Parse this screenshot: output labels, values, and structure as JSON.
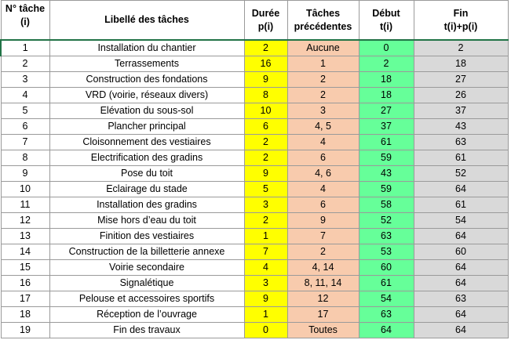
{
  "header": {
    "num_line1": "N° tâche",
    "num_line2": "(i)",
    "label": "Libellé des tâches",
    "duree_line1": "Durée",
    "duree_line2": "p(i)",
    "prec_line1": "Tâches",
    "prec_line2": "précédentes",
    "debut_line1": "Début",
    "debut_line2": "t(i)",
    "fin_line1": "Fin",
    "fin_line2": "t(i)+p(i)"
  },
  "rows": [
    {
      "num": "1",
      "label": "Installation du chantier",
      "duree": "2",
      "prec": "Aucune",
      "debut": "0",
      "fin": "2"
    },
    {
      "num": "2",
      "label": "Terrassements",
      "duree": "16",
      "prec": "1",
      "debut": "2",
      "fin": "18"
    },
    {
      "num": "3",
      "label": "Construction des fondations",
      "duree": "9",
      "prec": "2",
      "debut": "18",
      "fin": "27"
    },
    {
      "num": "4",
      "label": "VRD (voirie, réseaux divers)",
      "duree": "8",
      "prec": "2",
      "debut": "18",
      "fin": "26"
    },
    {
      "num": "5",
      "label": "Elévation du sous-sol",
      "duree": "10",
      "prec": "3",
      "debut": "27",
      "fin": "37"
    },
    {
      "num": "6",
      "label": "Plancher principal",
      "duree": "6",
      "prec": "4, 5",
      "debut": "37",
      "fin": "43"
    },
    {
      "num": "7",
      "label": "Cloisonnement des vestiaires",
      "duree": "2",
      "prec": "4",
      "debut": "61",
      "fin": "63"
    },
    {
      "num": "8",
      "label": "Electrification des gradins",
      "duree": "2",
      "prec": "6",
      "debut": "59",
      "fin": "61"
    },
    {
      "num": "9",
      "label": "Pose du toit",
      "duree": "9",
      "prec": "4, 6",
      "debut": "43",
      "fin": "52"
    },
    {
      "num": "10",
      "label": "Eclairage du stade",
      "duree": "5",
      "prec": "4",
      "debut": "59",
      "fin": "64"
    },
    {
      "num": "11",
      "label": "Installation des gradins",
      "duree": "3",
      "prec": "6",
      "debut": "58",
      "fin": "61"
    },
    {
      "num": "12",
      "label": "Mise hors d’eau du toit",
      "duree": "2",
      "prec": "9",
      "debut": "52",
      "fin": "54"
    },
    {
      "num": "13",
      "label": "Finition des vestiaires",
      "duree": "1",
      "prec": "7",
      "debut": "63",
      "fin": "64"
    },
    {
      "num": "14",
      "label": "Construction de la billetterie annexe",
      "duree": "7",
      "prec": "2",
      "debut": "53",
      "fin": "60"
    },
    {
      "num": "15",
      "label": "Voirie secondaire",
      "duree": "4",
      "prec": "4, 14",
      "debut": "60",
      "fin": "64"
    },
    {
      "num": "16",
      "label": "Signalétique",
      "duree": "3",
      "prec": "8, 11, 14",
      "debut": "61",
      "fin": "64"
    },
    {
      "num": "17",
      "label": "Pelouse et accessoires sportifs",
      "duree": "9",
      "prec": "12",
      "debut": "54",
      "fin": "63"
    },
    {
      "num": "18",
      "label": "Réception de l’ouvrage",
      "duree": "1",
      "prec": "17",
      "debut": "63",
      "fin": "64"
    },
    {
      "num": "19",
      "label": "Fin des travaux",
      "duree": "0",
      "prec": "Toutes",
      "debut": "64",
      "fin": "64"
    }
  ],
  "colors": {
    "duree_fill": "#ffff00",
    "prec_fill": "#f8cbad",
    "debut_fill": "#66ff99",
    "fin_fill": "#d9d9d9",
    "selection_border": "#217346"
  }
}
